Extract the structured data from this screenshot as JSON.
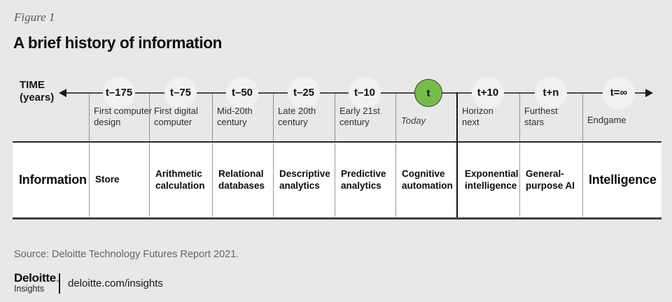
{
  "figure": {
    "label": "Figure 1",
    "title": "A brief history of information"
  },
  "axis": {
    "time_label": "TIME\n(years)"
  },
  "timeline": {
    "row_start_label": "Information",
    "columns": [
      {
        "time": "t–175",
        "era": "First computer\ndesign",
        "stage": "Store"
      },
      {
        "time": "t–75",
        "era": "First digital\ncomputer",
        "stage": "Arithmetic\ncalculation"
      },
      {
        "time": "t–50",
        "era": "Mid-20th\ncentury",
        "stage": "Relational\ndatabases"
      },
      {
        "time": "t–25",
        "era": "Late 20th\ncentury",
        "stage": "Descriptive\nanalytics"
      },
      {
        "time": "t–10",
        "era": "Early 21st\ncentury",
        "stage": "Predictive\nanalytics"
      },
      {
        "time": "t",
        "era": "Today",
        "stage": "Cognitive\nautomation",
        "highlight": true
      },
      {
        "time": "t+10",
        "era": "Horizon\nnext",
        "stage": "Exponential\nintelligence"
      },
      {
        "time": "t+n",
        "era": "Furthest\nstars",
        "stage": "General-\npurpose AI"
      },
      {
        "time": "t=∞",
        "era": "Endgame",
        "stage": "Intelligence"
      }
    ]
  },
  "source": "Source: Deloitte Technology Futures Report 2021.",
  "footer": {
    "logo_name": "Deloitte",
    "logo_dot": ".",
    "logo_sub": "Insights",
    "url": "deloitte.com/insights"
  },
  "colors": {
    "background": "#E8E8E8",
    "band_background": "#FFFFFF",
    "accent_green": "#76BC4A",
    "logo_dot_green": "#559C31",
    "axis_line": "#4A4A4A",
    "divider_gray": "#8F8F8F",
    "muted_text": "#63666A"
  }
}
